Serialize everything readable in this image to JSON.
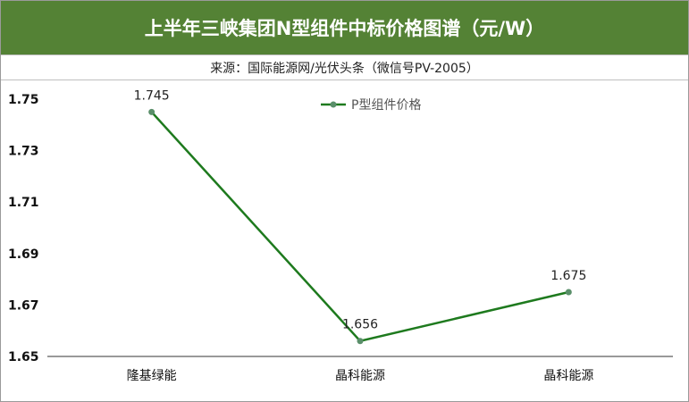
{
  "header": {
    "title": "上半年三峡集团N型组件中标价格图谱（元/W）",
    "source": "来源：国际能源网/光伏头条（微信号PV-2005）",
    "title_bg": "#548235"
  },
  "chart_data": {
    "type": "line",
    "categories": [
      "隆基绿能",
      "晶科能源",
      "晶科能源"
    ],
    "series": [
      {
        "name": "P型组件价格",
        "values": [
          1.745,
          1.656,
          1.675
        ],
        "labels": [
          "1.745",
          "1.656",
          "1.675"
        ],
        "color": "#1e7a1e",
        "marker_color": "#5a8f6a"
      }
    ],
    "ylim": [
      1.65,
      1.75
    ],
    "yticks": [
      "1.65",
      "1.67",
      "1.69",
      "1.71",
      "1.73",
      "1.75"
    ],
    "grid": false,
    "legend_position": "top-center"
  }
}
